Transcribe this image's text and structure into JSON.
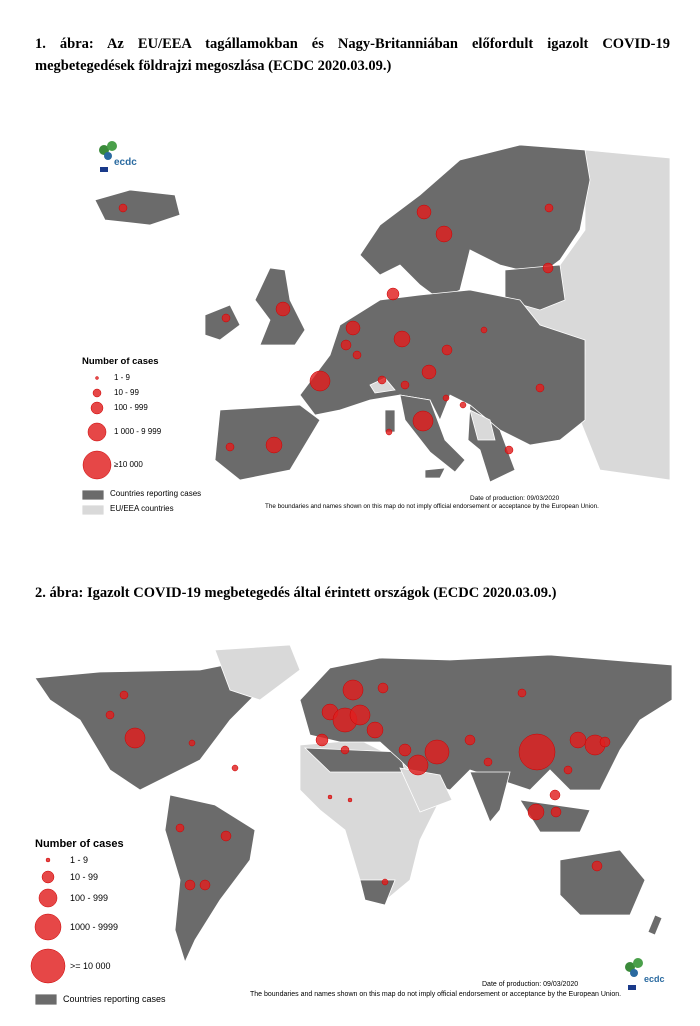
{
  "figures": [
    {
      "caption": "1. ábra: Az EU/EEA tagállamokban és Nagy-Britanniában előfordult igazolt COVID-19 megbetegedések földrajzi megoszlása (ECDC 2020.03.09.)",
      "map": {
        "logo": "ecdc",
        "legend": {
          "title": "Number of cases",
          "items": [
            "1 - 9",
            "10 - 99",
            "100 - 999",
            "1 000 - 9 999",
            "≥10 000"
          ],
          "areas": [
            "Countries reporting cases",
            "EU/EEA countries"
          ]
        },
        "date": "Date of production: 09/03/2020",
        "disclaimer": "The boundaries and names shown on this map do not imply official endorsement or acceptance by the European Union."
      }
    },
    {
      "caption": "2. ábra: Igazolt COVID-19 megbetegedés által érintett országok (ECDC 2020.03.09.)",
      "map": {
        "logo": "ecdc",
        "legend": {
          "title": "Number of cases",
          "items": [
            "1 - 9",
            "10 - 99",
            "100 - 999",
            "1000 - 9999",
            ">= 10 000"
          ],
          "areas": [
            "Countries reporting cases"
          ]
        },
        "date": "Date of production: 09/03/2020",
        "disclaimer": "The boundaries and names shown on this map do not imply official endorsement or acceptance by the European Union."
      }
    }
  ]
}
